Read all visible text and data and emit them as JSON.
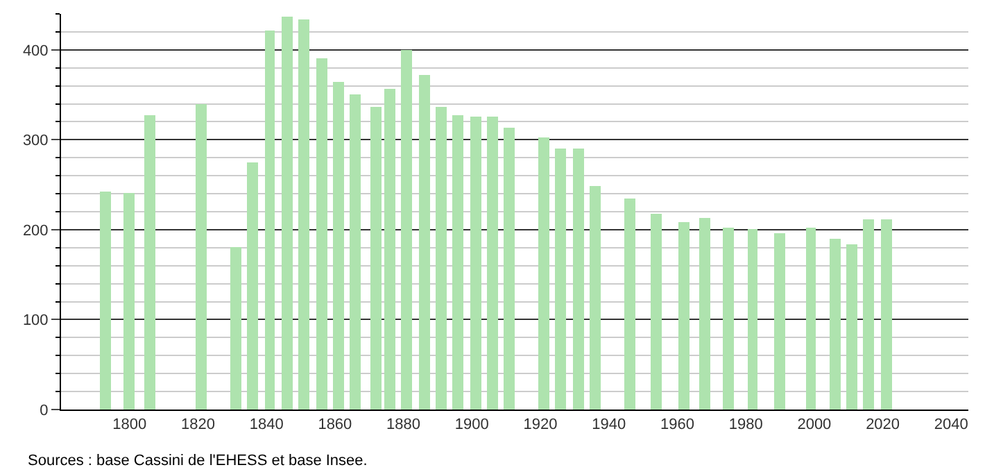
{
  "chart_data": {
    "type": "bar",
    "x": [
      1793,
      1800,
      1806,
      1821,
      1831,
      1836,
      1841,
      1846,
      1851,
      1856,
      1861,
      1866,
      1872,
      1876,
      1881,
      1886,
      1891,
      1896,
      1901,
      1906,
      1911,
      1921,
      1926,
      1931,
      1936,
      1946,
      1954,
      1962,
      1968,
      1975,
      1982,
      1990,
      1999,
      2006,
      2011,
      2016,
      2021
    ],
    "values": [
      243,
      241,
      328,
      340,
      181,
      275,
      421,
      437,
      434,
      390,
      365,
      351,
      337,
      357,
      400,
      372,
      337,
      328,
      325,
      325,
      313,
      302,
      290,
      290,
      249,
      235,
      217,
      208,
      213,
      202,
      201,
      196,
      202,
      190,
      183,
      211,
      211
    ],
    "color": "#aee3ae",
    "xlim": [
      1780,
      2045
    ],
    "xticks": [
      1800,
      1820,
      1840,
      1860,
      1880,
      1900,
      1920,
      1940,
      1960,
      1980,
      2000,
      2020,
      2040
    ],
    "ylim": [
      0,
      440
    ],
    "yticks": [
      0,
      {
        "value": 20,
        "label": null
      },
      {
        "value": 40,
        "label": null
      },
      {
        "value": 60,
        "label": null
      },
      {
        "value": 80,
        "label": null
      },
      100,
      {
        "value": 120,
        "label": null
      },
      {
        "value": 140,
        "label": null
      },
      {
        "value": 160,
        "label": null
      },
      {
        "value": 180,
        "label": null
      },
      200,
      {
        "value": 220,
        "label": null
      },
      {
        "value": 240,
        "label": null
      },
      {
        "value": 260,
        "label": null
      },
      {
        "value": 280,
        "label": null
      },
      300,
      {
        "value": 320,
        "label": null
      },
      {
        "value": 340,
        "label": null
      },
      {
        "value": 360,
        "label": null
      },
      {
        "value": 380,
        "label": null
      },
      400,
      {
        "value": 420,
        "label": null
      },
      {
        "value": 440,
        "label": null
      }
    ],
    "grid": "y",
    "annotations": [
      "Sources : base Cassini de l'EHESS et base Insee."
    ]
  }
}
